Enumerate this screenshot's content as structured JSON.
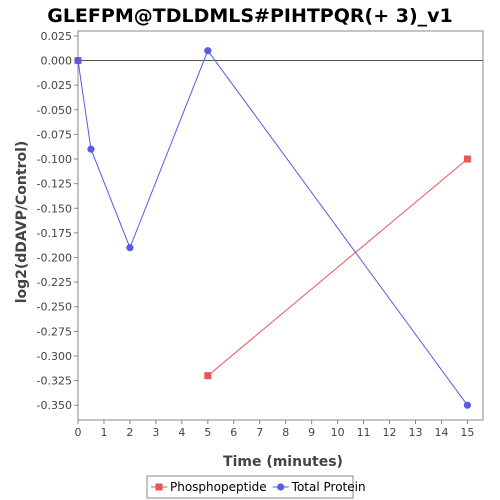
{
  "chart_data": {
    "type": "line",
    "title": "GLEFPM@TDLDMLS#PIHTPQR(+ 3)_v1",
    "xlabel": "Time (minutes)",
    "ylabel": "log2(dDAVP/Control)",
    "xlim": [
      0,
      15.6
    ],
    "ylim": [
      -0.365,
      0.03
    ],
    "x_ticks": [
      0,
      1,
      2,
      3,
      4,
      5,
      6,
      7,
      8,
      9,
      10,
      11,
      12,
      13,
      14,
      15
    ],
    "y_ticks": [
      0.025,
      0.0,
      -0.025,
      -0.05,
      -0.075,
      -0.1,
      -0.125,
      -0.15,
      -0.175,
      -0.2,
      -0.225,
      -0.25,
      -0.275,
      -0.3,
      -0.325,
      -0.35
    ],
    "y_tick_labels": [
      "0.025",
      "0.000",
      "-0.025",
      "-0.050",
      "-0.075",
      "-0.100",
      "-0.125",
      "-0.150",
      "-0.175",
      "-0.200",
      "-0.225",
      "-0.250",
      "-0.275",
      "-0.300",
      "-0.325",
      "-0.350"
    ],
    "zero_line": true,
    "grid": false,
    "legend_position": "bottom",
    "series": [
      {
        "name": "Phosphopeptide",
        "color": "#e8555a",
        "marker": "square",
        "points": [
          {
            "x": 0,
            "y": 0.0,
            "connected": false
          },
          {
            "x": 5,
            "y": -0.32,
            "connected": true
          },
          {
            "x": 15,
            "y": -0.1,
            "connected": true
          }
        ]
      },
      {
        "name": "Total Protein",
        "color": "#5a5ae8",
        "marker": "circle",
        "points": [
          {
            "x": 0,
            "y": 0.0,
            "connected": true
          },
          {
            "x": 0.5,
            "y": -0.09,
            "connected": true
          },
          {
            "x": 2,
            "y": -0.19,
            "connected": true
          },
          {
            "x": 5,
            "y": 0.01,
            "connected": true
          },
          {
            "x": 15,
            "y": -0.35,
            "connected": true
          }
        ]
      }
    ]
  }
}
